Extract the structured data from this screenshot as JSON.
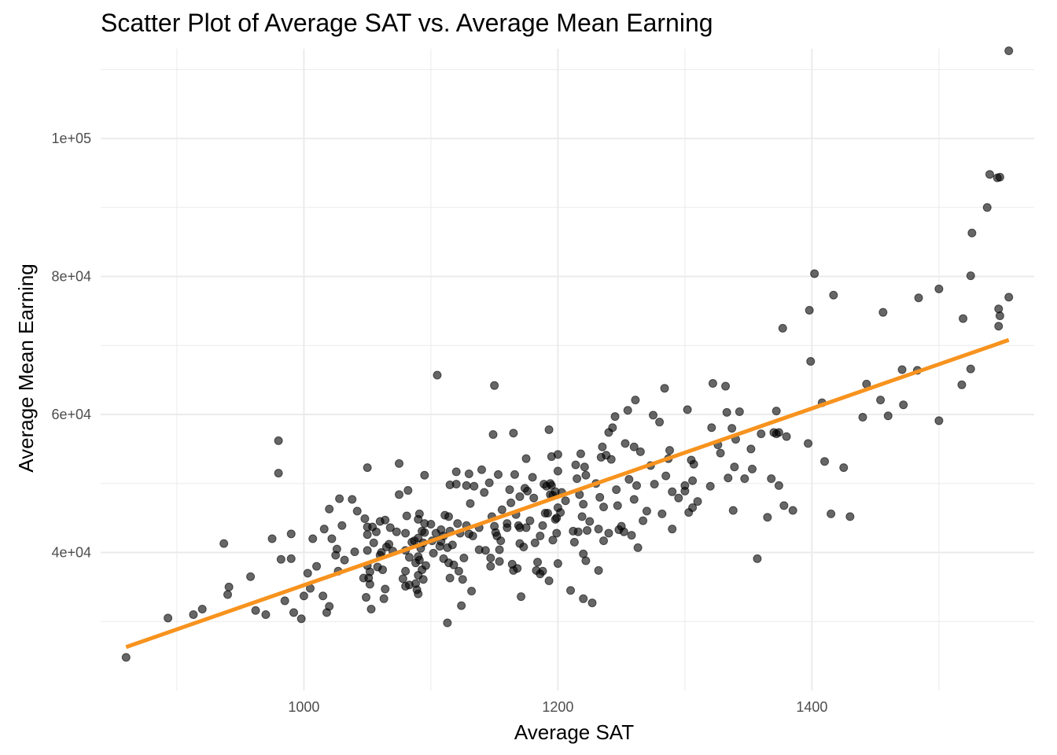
{
  "chart_data": {
    "type": "scatter",
    "title": "Scatter Plot of Average SAT vs. Average Mean Earning",
    "xlabel": "Average SAT",
    "ylabel": "Average Mean Earning",
    "xlim": [
      840,
      1575
    ],
    "ylim": [
      20000,
      113000
    ],
    "x_ticks": [
      1000,
      1200,
      1400
    ],
    "x_tick_labels": [
      "1000",
      "1200",
      "1400"
    ],
    "y_ticks": [
      40000,
      60000,
      80000,
      100000
    ],
    "y_tick_labels": [
      "4e+04",
      "6e+04",
      "8e+04",
      "1e+05"
    ],
    "grid": true,
    "trend_line": {
      "color": "#f7931e",
      "x": [
        860,
        1555
      ],
      "y": [
        26300,
        70800
      ]
    },
    "point_color": "#000000",
    "points": [
      [
        860,
        24800
      ],
      [
        893,
        30500
      ],
      [
        913,
        31000
      ],
      [
        920,
        31800
      ],
      [
        937,
        41300
      ],
      [
        940,
        33900
      ],
      [
        941,
        35000
      ],
      [
        958,
        36500
      ],
      [
        962,
        31600
      ],
      [
        970,
        31000
      ],
      [
        975,
        42000
      ],
      [
        980,
        56200
      ],
      [
        980,
        51500
      ],
      [
        982,
        39000
      ],
      [
        985,
        33000
      ],
      [
        990,
        39100
      ],
      [
        990,
        42700
      ],
      [
        992,
        31300
      ],
      [
        998,
        30400
      ],
      [
        1000,
        33700
      ],
      [
        1003,
        37000
      ],
      [
        1005,
        34800
      ],
      [
        1007,
        42000
      ],
      [
        1010,
        38000
      ],
      [
        1015,
        33700
      ],
      [
        1016,
        43400
      ],
      [
        1018,
        31300
      ],
      [
        1020,
        32200
      ],
      [
        1020,
        46300
      ],
      [
        1022,
        42000
      ],
      [
        1025,
        39600
      ],
      [
        1026,
        40500
      ],
      [
        1027,
        37300
      ],
      [
        1028,
        47800
      ],
      [
        1030,
        43900
      ],
      [
        1032,
        38900
      ],
      [
        1038,
        47700
      ],
      [
        1040,
        40100
      ],
      [
        1042,
        46000
      ],
      [
        1047,
        36300
      ],
      [
        1048,
        44900
      ],
      [
        1049,
        33500
      ],
      [
        1050,
        43700
      ],
      [
        1050,
        42600
      ],
      [
        1050,
        38100
      ],
      [
        1050,
        40300
      ],
      [
        1050,
        52300
      ],
      [
        1051,
        36300
      ],
      [
        1052,
        37200
      ],
      [
        1052,
        35400
      ],
      [
        1053,
        31800
      ],
      [
        1054,
        43700
      ],
      [
        1055,
        41400
      ],
      [
        1057,
        43000
      ],
      [
        1058,
        37900
      ],
      [
        1060,
        44500
      ],
      [
        1060,
        39600
      ],
      [
        1061,
        40000
      ],
      [
        1062,
        37500
      ],
      [
        1063,
        33300
      ],
      [
        1064,
        44700
      ],
      [
        1064,
        34700
      ],
      [
        1065,
        40800
      ],
      [
        1067,
        41200
      ],
      [
        1068,
        43600
      ],
      [
        1070,
        40200
      ],
      [
        1073,
        43000
      ],
      [
        1075,
        48400
      ],
      [
        1075,
        52900
      ],
      [
        1078,
        36200
      ],
      [
        1080,
        40300
      ],
      [
        1080,
        37300
      ],
      [
        1080,
        35100
      ],
      [
        1080,
        42800
      ],
      [
        1081,
        45300
      ],
      [
        1082,
        49000
      ],
      [
        1083,
        39300
      ],
      [
        1083,
        35300
      ],
      [
        1085,
        41500
      ],
      [
        1087,
        41700
      ],
      [
        1088,
        35500
      ],
      [
        1088,
        38500
      ],
      [
        1089,
        34600
      ],
      [
        1090,
        34000
      ],
      [
        1090,
        36700
      ],
      [
        1090,
        39400
      ],
      [
        1090,
        42100
      ],
      [
        1090,
        44800
      ],
      [
        1091,
        45600
      ],
      [
        1091,
        38900
      ],
      [
        1092,
        40600
      ],
      [
        1093,
        37500
      ],
      [
        1093,
        43100
      ],
      [
        1094,
        41400
      ],
      [
        1094,
        36100
      ],
      [
        1095,
        51200
      ],
      [
        1095,
        44200
      ],
      [
        1095,
        42900
      ],
      [
        1096,
        38100
      ],
      [
        1100,
        44100
      ],
      [
        1101,
        41700
      ],
      [
        1102,
        39900
      ],
      [
        1104,
        42800
      ],
      [
        1105,
        65700
      ],
      [
        1107,
        40900
      ],
      [
        1108,
        43300
      ],
      [
        1108,
        41600
      ],
      [
        1110,
        39100
      ],
      [
        1110,
        42400
      ],
      [
        1111,
        45400
      ],
      [
        1113,
        40700
      ],
      [
        1113,
        29800
      ],
      [
        1114,
        45200
      ],
      [
        1114,
        38500
      ],
      [
        1115,
        36300
      ],
      [
        1115,
        49800
      ],
      [
        1115,
        43100
      ],
      [
        1117,
        41100
      ],
      [
        1118,
        38200
      ],
      [
        1120,
        49900
      ],
      [
        1120,
        51700
      ],
      [
        1121,
        44200
      ],
      [
        1122,
        37300
      ],
      [
        1123,
        42800
      ],
      [
        1124,
        32300
      ],
      [
        1125,
        36100
      ],
      [
        1126,
        39200
      ],
      [
        1128,
        43900
      ],
      [
        1128,
        49700
      ],
      [
        1130,
        42700
      ],
      [
        1130,
        51400
      ],
      [
        1131,
        47100
      ],
      [
        1132,
        34400
      ],
      [
        1133,
        42400
      ],
      [
        1134,
        49600
      ],
      [
        1138,
        43600
      ],
      [
        1138,
        40400
      ],
      [
        1140,
        52000
      ],
      [
        1142,
        48700
      ],
      [
        1143,
        40300
      ],
      [
        1146,
        50100
      ],
      [
        1147,
        39200
      ],
      [
        1147,
        38000
      ],
      [
        1148,
        45200
      ],
      [
        1149,
        57100
      ],
      [
        1150,
        64200
      ],
      [
        1150,
        43800
      ],
      [
        1151,
        42900
      ],
      [
        1152,
        42400
      ],
      [
        1153,
        51300
      ],
      [
        1154,
        38700
      ],
      [
        1154,
        40400
      ],
      [
        1155,
        41700
      ],
      [
        1156,
        46200
      ],
      [
        1160,
        44200
      ],
      [
        1160,
        43600
      ],
      [
        1162,
        49100
      ],
      [
        1163,
        47200
      ],
      [
        1164,
        38300
      ],
      [
        1165,
        37400
      ],
      [
        1165,
        57300
      ],
      [
        1166,
        51300
      ],
      [
        1167,
        45500
      ],
      [
        1168,
        37700
      ],
      [
        1169,
        43900
      ],
      [
        1170,
        43600
      ],
      [
        1170,
        41300
      ],
      [
        1170,
        48100
      ],
      [
        1171,
        33600
      ],
      [
        1173,
        40800
      ],
      [
        1174,
        49300
      ],
      [
        1175,
        53600
      ],
      [
        1175,
        43600
      ],
      [
        1176,
        48900
      ],
      [
        1178,
        44600
      ],
      [
        1180,
        50900
      ],
      [
        1181,
        47900
      ],
      [
        1182,
        41400
      ],
      [
        1183,
        37400
      ],
      [
        1184,
        38600
      ],
      [
        1186,
        36900
      ],
      [
        1186,
        42400
      ],
      [
        1188,
        37300
      ],
      [
        1188,
        43900
      ],
      [
        1189,
        49900
      ],
      [
        1190,
        45700
      ],
      [
        1191,
        49600
      ],
      [
        1192,
        45700
      ],
      [
        1193,
        35900
      ],
      [
        1193,
        57800
      ],
      [
        1194,
        50000
      ],
      [
        1194,
        48400
      ],
      [
        1195,
        49700
      ],
      [
        1195,
        53900
      ],
      [
        1196,
        41800
      ],
      [
        1196,
        48300
      ],
      [
        1198,
        48800
      ],
      [
        1198,
        44800
      ],
      [
        1199,
        45000
      ],
      [
        1199,
        42800
      ],
      [
        1200,
        51800
      ],
      [
        1200,
        38400
      ],
      [
        1200,
        46500
      ],
      [
        1200,
        54200
      ],
      [
        1202,
        45800
      ],
      [
        1203,
        48700
      ],
      [
        1206,
        47500
      ],
      [
        1210,
        34500
      ],
      [
        1212,
        43100
      ],
      [
        1213,
        41500
      ],
      [
        1214,
        52700
      ],
      [
        1215,
        50700
      ],
      [
        1216,
        43000
      ],
      [
        1217,
        48400
      ],
      [
        1218,
        54300
      ],
      [
        1219,
        45200
      ],
      [
        1220,
        47000
      ],
      [
        1220,
        33300
      ],
      [
        1220,
        39800
      ],
      [
        1221,
        52400
      ],
      [
        1222,
        51200
      ],
      [
        1222,
        38800
      ],
      [
        1223,
        43200
      ],
      [
        1225,
        44500
      ],
      [
        1227,
        32700
      ],
      [
        1230,
        50000
      ],
      [
        1232,
        43400
      ],
      [
        1232,
        37400
      ],
      [
        1233,
        48000
      ],
      [
        1234,
        53800
      ],
      [
        1235,
        55300
      ],
      [
        1236,
        46600
      ],
      [
        1236,
        41700
      ],
      [
        1238,
        54100
      ],
      [
        1240,
        42800
      ],
      [
        1240,
        57400
      ],
      [
        1242,
        53500
      ],
      [
        1243,
        58100
      ],
      [
        1245,
        59700
      ],
      [
        1246,
        49100
      ],
      [
        1247,
        46800
      ],
      [
        1248,
        43300
      ],
      [
        1250,
        43800
      ],
      [
        1252,
        43000
      ],
      [
        1253,
        55800
      ],
      [
        1255,
        60600
      ],
      [
        1256,
        50600
      ],
      [
        1258,
        42500
      ],
      [
        1260,
        55300
      ],
      [
        1260,
        47700
      ],
      [
        1261,
        62100
      ],
      [
        1262,
        49700
      ],
      [
        1263,
        40700
      ],
      [
        1265,
        54600
      ],
      [
        1267,
        44600
      ],
      [
        1270,
        46000
      ],
      [
        1273,
        52600
      ],
      [
        1275,
        59900
      ],
      [
        1276,
        49900
      ],
      [
        1280,
        58900
      ],
      [
        1282,
        45600
      ],
      [
        1284,
        63800
      ],
      [
        1285,
        51100
      ],
      [
        1287,
        53600
      ],
      [
        1288,
        54800
      ],
      [
        1290,
        43400
      ],
      [
        1290,
        48800
      ],
      [
        1295,
        47900
      ],
      [
        1300,
        49700
      ],
      [
        1300,
        48900
      ],
      [
        1302,
        60700
      ],
      [
        1303,
        45800
      ],
      [
        1305,
        53400
      ],
      [
        1306,
        46500
      ],
      [
        1306,
        50400
      ],
      [
        1307,
        52800
      ],
      [
        1310,
        47400
      ],
      [
        1320,
        49600
      ],
      [
        1321,
        58100
      ],
      [
        1322,
        64500
      ],
      [
        1326,
        55600
      ],
      [
        1328,
        54400
      ],
      [
        1332,
        64100
      ],
      [
        1333,
        60300
      ],
      [
        1334,
        50800
      ],
      [
        1337,
        58000
      ],
      [
        1338,
        46100
      ],
      [
        1339,
        52400
      ],
      [
        1340,
        56400
      ],
      [
        1343,
        60400
      ],
      [
        1347,
        50700
      ],
      [
        1352,
        55000
      ],
      [
        1353,
        52100
      ],
      [
        1357,
        39100
      ],
      [
        1360,
        57200
      ],
      [
        1365,
        45100
      ],
      [
        1368,
        50700
      ],
      [
        1370,
        57400
      ],
      [
        1372,
        57200
      ],
      [
        1372,
        60500
      ],
      [
        1374,
        57400
      ],
      [
        1374,
        49700
      ],
      [
        1377,
        72500
      ],
      [
        1378,
        46800
      ],
      [
        1380,
        56800
      ],
      [
        1385,
        46100
      ],
      [
        1397,
        55800
      ],
      [
        1398,
        75100
      ],
      [
        1399,
        67700
      ],
      [
        1402,
        80400
      ],
      [
        1408,
        61700
      ],
      [
        1410,
        53200
      ],
      [
        1415,
        45600
      ],
      [
        1417,
        77300
      ],
      [
        1425,
        52300
      ],
      [
        1430,
        45200
      ],
      [
        1440,
        59600
      ],
      [
        1443,
        64400
      ],
      [
        1454,
        62100
      ],
      [
        1456,
        74800
      ],
      [
        1460,
        59800
      ],
      [
        1471,
        66500
      ],
      [
        1472,
        61400
      ],
      [
        1483,
        66400
      ],
      [
        1484,
        76900
      ],
      [
        1500,
        78200
      ],
      [
        1500,
        59100
      ],
      [
        1518,
        64300
      ],
      [
        1519,
        73900
      ],
      [
        1525,
        80100
      ],
      [
        1525,
        66600
      ],
      [
        1526,
        86300
      ],
      [
        1538,
        90000
      ],
      [
        1540,
        94800
      ],
      [
        1546,
        94300
      ],
      [
        1547,
        75300
      ],
      [
        1547,
        72800
      ],
      [
        1548,
        74300
      ],
      [
        1548,
        94400
      ],
      [
        1555,
        77000
      ],
      [
        1555,
        112700
      ]
    ]
  }
}
